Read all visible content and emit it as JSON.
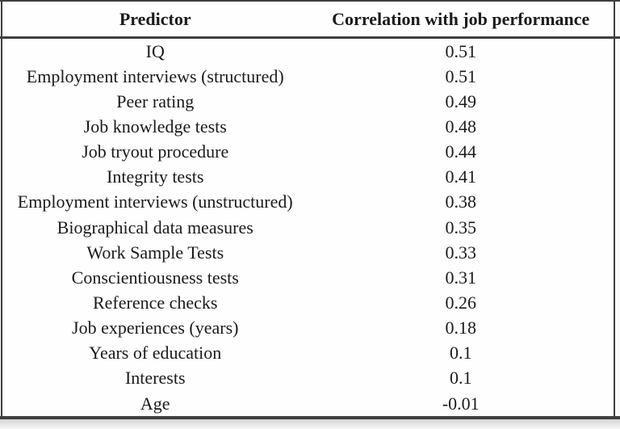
{
  "table": {
    "header": {
      "predictor": "Predictor",
      "correlation": "Correlation with job performance"
    },
    "rows": [
      {
        "predictor": "IQ",
        "correlation": "0.51"
      },
      {
        "predictor": "Employment interviews (structured)",
        "correlation": "0.51"
      },
      {
        "predictor": "Peer rating",
        "correlation": "0.49"
      },
      {
        "predictor": "Job knowledge tests",
        "correlation": "0.48"
      },
      {
        "predictor": "Job tryout procedure",
        "correlation": "0.44"
      },
      {
        "predictor": "Integrity tests",
        "correlation": "0.41"
      },
      {
        "predictor": "Employment interviews (unstructured)",
        "correlation": "0.38"
      },
      {
        "predictor": "Biographical data measures",
        "correlation": "0.35"
      },
      {
        "predictor": "Work Sample Tests",
        "correlation": "0.33"
      },
      {
        "predictor": "Conscientiousness tests",
        "correlation": "0.31"
      },
      {
        "predictor": "Reference checks",
        "correlation": "0.26"
      },
      {
        "predictor": "Job experiences (years)",
        "correlation": "0.18"
      },
      {
        "predictor": "Years of education",
        "correlation": "0.1"
      },
      {
        "predictor": "Interests",
        "correlation": "0.1"
      },
      {
        "predictor": "Age",
        "correlation": "-0.01"
      }
    ]
  },
  "colors": {
    "border": "#3f3f3f",
    "text": "#1b1b1b",
    "page_background": "#fafafa",
    "table_background": "#fefefe"
  },
  "chart_data": {
    "type": "table",
    "columns": [
      "Predictor",
      "Correlation with job performance"
    ],
    "categories": [
      "IQ",
      "Employment interviews (structured)",
      "Peer rating",
      "Job knowledge tests",
      "Job tryout procedure",
      "Integrity tests",
      "Employment interviews (unstructured)",
      "Biographical data measures",
      "Work Sample Tests",
      "Conscientiousness tests",
      "Reference checks",
      "Job experiences (years)",
      "Years of education",
      "Interests",
      "Age"
    ],
    "values": [
      0.51,
      0.51,
      0.49,
      0.48,
      0.44,
      0.41,
      0.38,
      0.35,
      0.33,
      0.31,
      0.26,
      0.18,
      0.1,
      0.1,
      -0.01
    ]
  }
}
